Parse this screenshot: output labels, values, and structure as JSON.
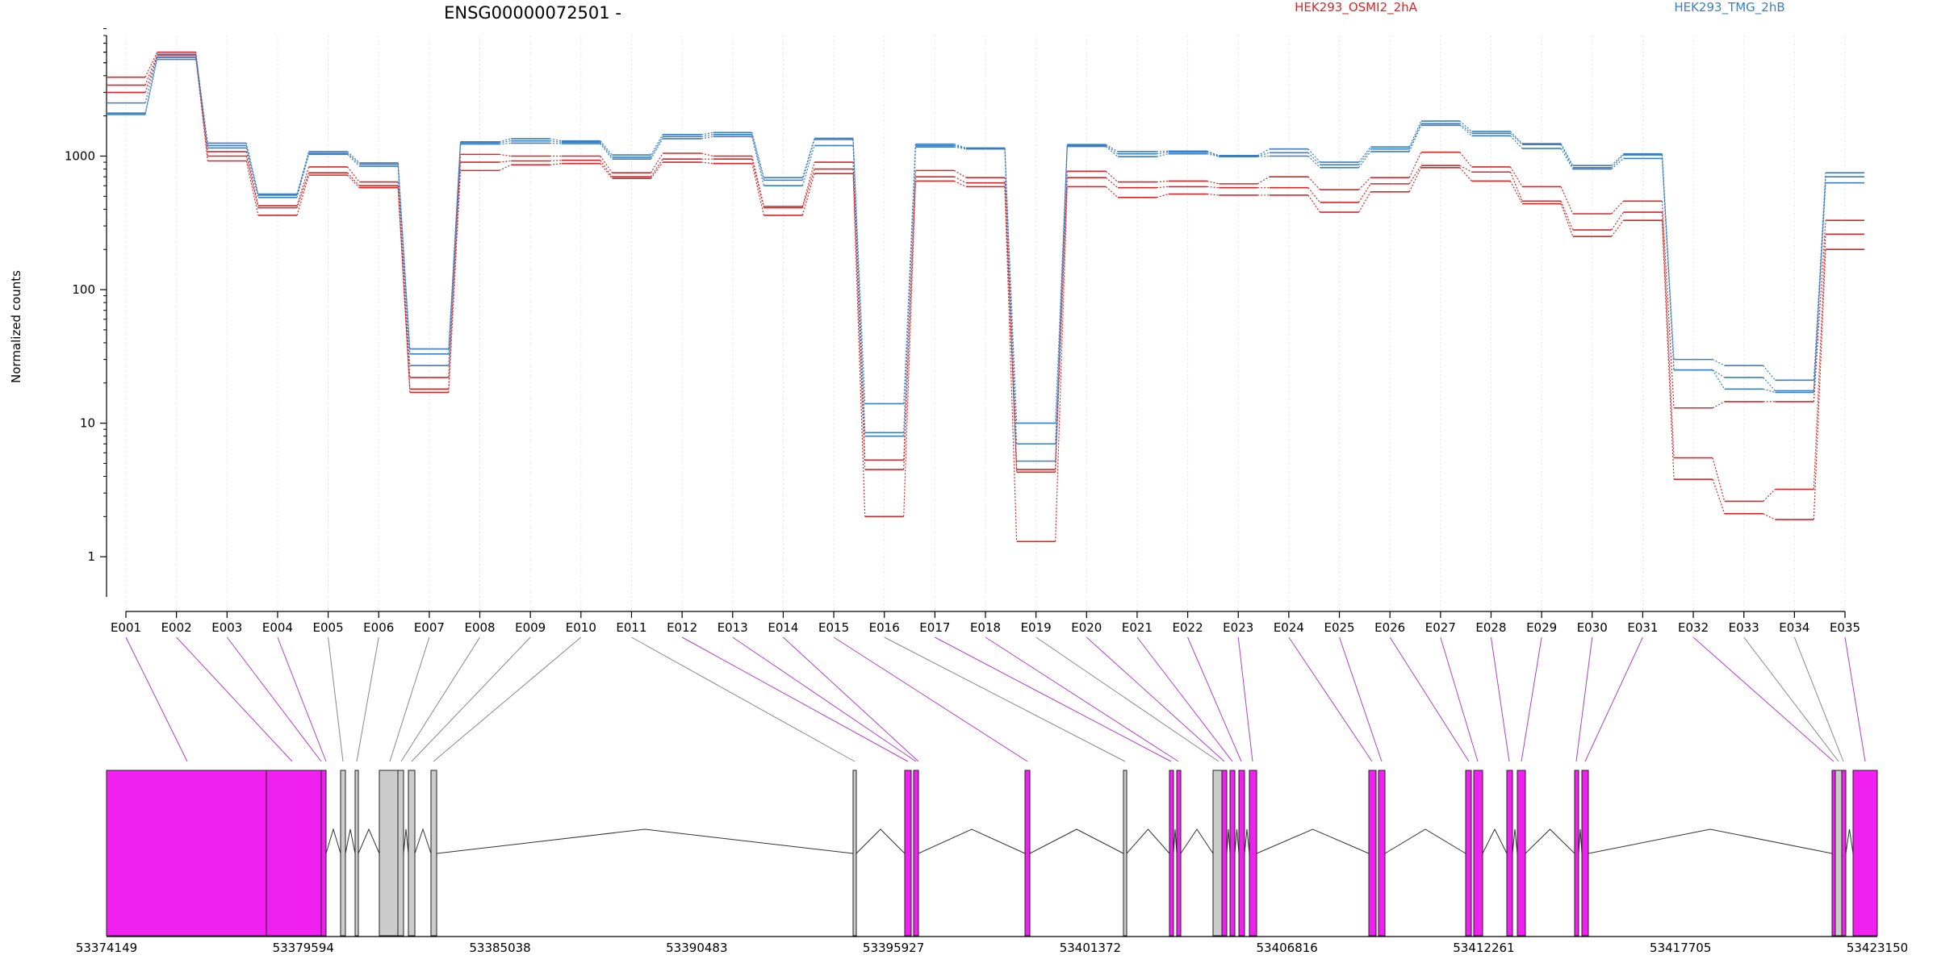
{
  "chart_data": {
    "type": "line",
    "title": "ENSG00000072501 -",
    "ylabel": "Normalized counts",
    "xlabel": "",
    "yscale": "log",
    "ylim": [
      0.5,
      8000
    ],
    "yticks": [
      1,
      10,
      100,
      1000
    ],
    "ytick_labels": [
      "1",
      "10",
      "100",
      "1000"
    ],
    "legend_placement": "top",
    "grid": "vertical dotted lines at exon bins",
    "categories": [
      "E001",
      "E002",
      "E003",
      "E004",
      "E005",
      "E006",
      "E007",
      "E008",
      "E009",
      "E010",
      "E011",
      "E012",
      "E013",
      "E014",
      "E015",
      "E016",
      "E017",
      "E018",
      "E019",
      "E020",
      "E021",
      "E022",
      "E023",
      "E024",
      "E025",
      "E026",
      "E027",
      "E028",
      "E029",
      "E030",
      "E031",
      "E032",
      "E033",
      "E034",
      "E035"
    ],
    "colors": {
      "HEK293_OSMI2_2hA": "#d62728",
      "HEK293_TMG_2hB": "#3a7fc1"
    },
    "series": [
      {
        "name": "HEK293_OSMI2_2hA",
        "group": "HEK293_OSMI2_2hA",
        "values": [
          3900,
          6000,
          1080,
          425,
          830,
          640,
          22,
          1030,
          1000,
          1000,
          750,
          1050,
          1000,
          420,
          900,
          5.3,
          780,
          690,
          4.5,
          770,
          640,
          650,
          620,
          700,
          560,
          690,
          1070,
          830,
          590,
          370,
          460,
          13,
          14.5,
          14.5,
          330
        ]
      },
      {
        "name": "HEK293_OSMI2_2hA",
        "group": "HEK293_OSMI2_2hA",
        "values": [
          3400,
          5700,
          1000,
          410,
          750,
          600,
          18,
          900,
          920,
          930,
          700,
          950,
          950,
          410,
          800,
          4.5,
          700,
          630,
          4.3,
          690,
          580,
          590,
          580,
          580,
          450,
          620,
          850,
          760,
          460,
          280,
          380,
          5.5,
          2.6,
          3.2,
          260
        ]
      },
      {
        "name": "HEK293_OSMI2_2hA",
        "group": "HEK293_OSMI2_2hA",
        "values": [
          3000,
          5500,
          920,
          360,
          720,
          580,
          17,
          780,
          860,
          880,
          680,
          900,
          880,
          360,
          740,
          2,
          650,
          590,
          1.3,
          590,
          490,
          520,
          510,
          510,
          380,
          540,
          820,
          650,
          440,
          250,
          330,
          3.8,
          2.1,
          1.9,
          200
        ]
      },
      {
        "name": "HEK293_TMG_2hB",
        "group": "HEK293_TMG_2hB",
        "values": [
          2500,
          5800,
          1250,
          520,
          1080,
          890,
          36,
          1280,
          1350,
          1300,
          1020,
          1450,
          1500,
          690,
          1360,
          14,
          1230,
          1150,
          10,
          1220,
          1080,
          1090,
          1010,
          1130,
          900,
          1170,
          1830,
          1530,
          1240,
          850,
          1040,
          30,
          27,
          21,
          750
        ]
      },
      {
        "name": "HEK293_TMG_2hB",
        "group": "HEK293_TMG_2hB",
        "values": [
          2100,
          5500,
          1200,
          510,
          1050,
          870,
          33,
          1260,
          1300,
          1270,
          980,
          1400,
          1450,
          660,
          1330,
          8.5,
          1200,
          1140,
          7,
          1200,
          1040,
          1070,
          1000,
          1060,
          860,
          1130,
          1750,
          1480,
          1220,
          820,
          1020,
          25,
          22,
          17.5,
          700
        ]
      },
      {
        "name": "HEK293_TMG_2hB",
        "group": "HEK293_TMG_2hB",
        "values": [
          2050,
          5300,
          1150,
          490,
          1030,
          840,
          27,
          1230,
          1250,
          1240,
          950,
          1350,
          1400,
          600,
          1200,
          8,
          1170,
          1130,
          5.2,
          1180,
          990,
          1040,
          990,
          1000,
          820,
          1080,
          1700,
          1420,
          1140,
          800,
          960,
          25,
          18,
          17,
          630
        ]
      }
    ]
  },
  "legend": {
    "item_a": "HEK293_OSMI2_2hA",
    "item_b": "HEK293_TMG_2hB"
  },
  "gene_model": {
    "coord_labels": [
      "53374149",
      "53379594",
      "53385038",
      "53390483",
      "53395927",
      "53401372",
      "53406816",
      "53412261",
      "53417705",
      "53423150"
    ],
    "exon_bin_colors": {
      "E001": "magenta",
      "E002": "magenta",
      "E003": "magenta",
      "E004": "magenta",
      "E005": "gray",
      "E006": "gray",
      "E007": "gray",
      "E008": "gray",
      "E009": "gray",
      "E010": "gray",
      "E011": "gray",
      "E012": "magenta",
      "E013": "magenta",
      "E014": "magenta",
      "E015": "magenta",
      "E016": "gray",
      "E017": "magenta",
      "E018": "magenta",
      "E019": "gray",
      "E020": "magenta",
      "E021": "magenta",
      "E022": "magenta",
      "E023": "magenta",
      "E024": "magenta",
      "E025": "magenta",
      "E026": "magenta",
      "E027": "magenta",
      "E028": "magenta",
      "E029": "magenta",
      "E030": "magenta",
      "E031": "magenta",
      "E032": "magenta",
      "E033": "gray",
      "E034": "gray",
      "E035": "magenta"
    },
    "colors": {
      "magenta": "#f020f0",
      "gray": "#cccccc",
      "connector_magenta": "#b040c8",
      "connector_gray": "#888888"
    }
  }
}
